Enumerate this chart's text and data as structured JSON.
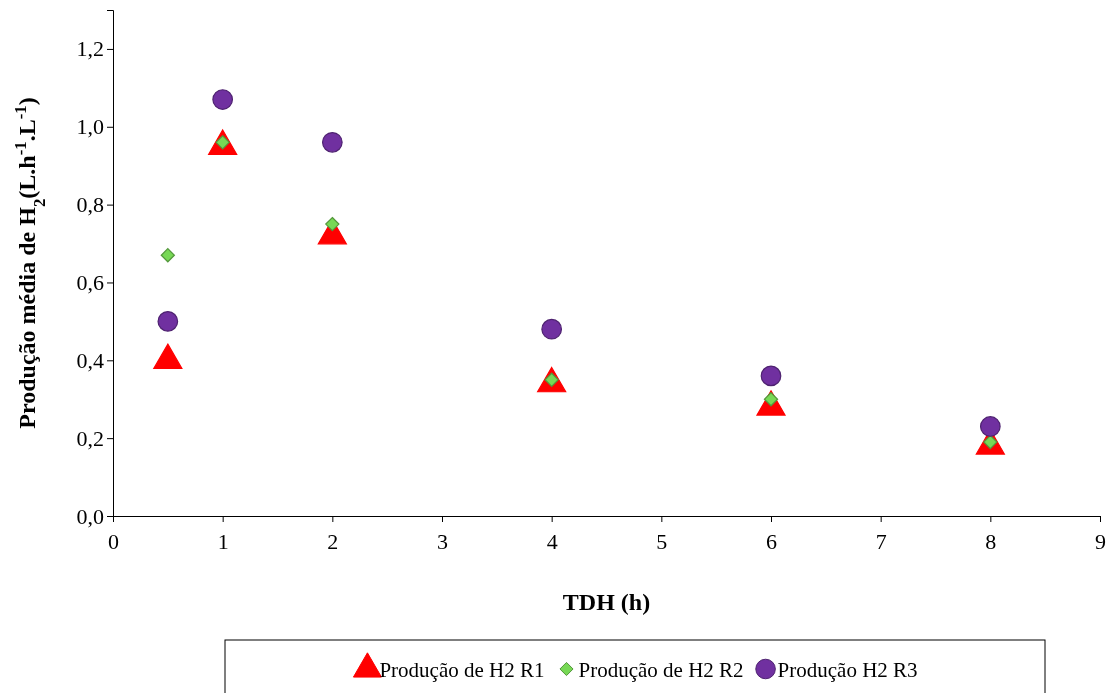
{
  "chart_data": {
    "type": "scatter",
    "xlabel": "TDH (h)",
    "ylabel": "Produção média de H$_{2}$(L.h$^{-1}$.L$^{-1}$)",
    "xlim": [
      0,
      9
    ],
    "xticks": [
      0,
      1,
      2,
      3,
      4,
      5,
      6,
      7,
      8,
      9
    ],
    "ylim": [
      0,
      1.3
    ],
    "yticks": [
      {
        "value": 0,
        "label": "0,0"
      },
      {
        "value": 0.2,
        "label": "0,2"
      },
      {
        "value": 0.4,
        "label": "0,4"
      },
      {
        "value": 0.6,
        "label": "0,6"
      },
      {
        "value": 0.8,
        "label": "0,8"
      },
      {
        "value": 1.0,
        "label": "1,0"
      },
      {
        "value": 1.2,
        "label": "1,2"
      }
    ],
    "grid": false,
    "legend": "bottom",
    "series": [
      {
        "name": "Produção de H2 R1",
        "color": "#ff0000",
        "marker": "triangle",
        "x": [
          0.5,
          1,
          2,
          4,
          6,
          8
        ],
        "values": [
          0.4,
          0.95,
          0.72,
          0.34,
          0.28,
          0.18
        ]
      },
      {
        "name": "Produção de H2 R2",
        "color": "#77d855",
        "marker": "diamond",
        "x": [
          0.5,
          1,
          2,
          4,
          6,
          8
        ],
        "values": [
          0.67,
          0.96,
          0.75,
          0.35,
          0.3,
          0.19
        ]
      },
      {
        "name": "Produção H2 R3",
        "color": "#7030a0",
        "marker": "circle",
        "x": [
          0.5,
          1,
          2,
          4,
          6,
          8
        ],
        "values": [
          0.5,
          1.07,
          0.96,
          0.48,
          0.36,
          0.23
        ]
      }
    ]
  }
}
